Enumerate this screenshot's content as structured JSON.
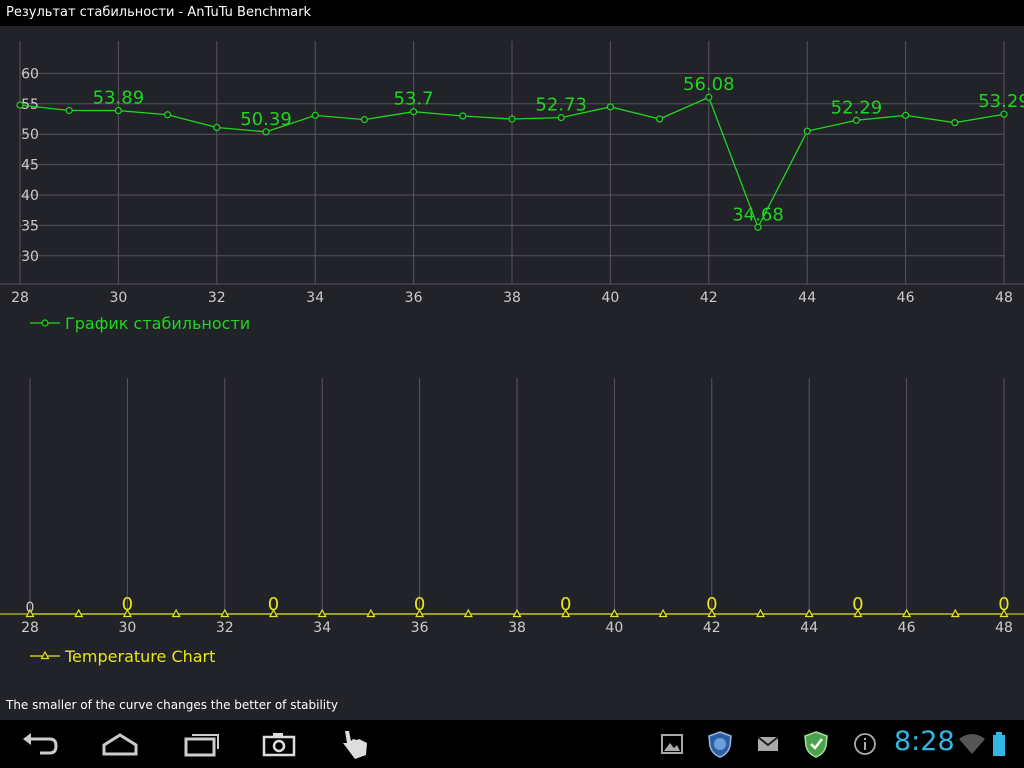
{
  "window": {
    "title": "Результат стабильности - AnTuTu Benchmark"
  },
  "footnote": "The smaller of the curve changes the better of stability",
  "status": {
    "time": "8:28"
  },
  "colors": {
    "stability": "#1fd51f",
    "temperature": "#e6e61e",
    "grid": "#55565c",
    "background": "#222328"
  },
  "icons": {
    "nav": [
      "back-icon",
      "home-icon",
      "recent-apps-icon",
      "screenshot-camera-icon",
      "hand-pointer-icon"
    ],
    "status": [
      "gallery-icon",
      "antutu-shield-icon",
      "gmail-icon",
      "green-shield-icon",
      "info-icon",
      "wifi-icon",
      "battery-icon"
    ]
  },
  "chart_data": [
    {
      "type": "line",
      "x": [
        28,
        29,
        30,
        31,
        32,
        33,
        34,
        35,
        36,
        37,
        38,
        39,
        40,
        41,
        42,
        43,
        44,
        45,
        46,
        47,
        48
      ],
      "series": [
        {
          "name": "График стабильности",
          "values": [
            54.8,
            53.9,
            53.89,
            53.2,
            51.1,
            50.39,
            53.1,
            52.4,
            53.7,
            53.0,
            52.5,
            52.73,
            54.5,
            52.5,
            56.08,
            34.68,
            50.5,
            52.29,
            53.1,
            51.9,
            53.29
          ]
        }
      ],
      "labeled_points": [
        {
          "x": 30,
          "label": "53.89"
        },
        {
          "x": 33,
          "label": "50.39"
        },
        {
          "x": 36,
          "label": "53.7"
        },
        {
          "x": 39,
          "label": "52.73"
        },
        {
          "x": 42,
          "label": "56.08"
        },
        {
          "x": 43,
          "label": "34.68"
        },
        {
          "x": 45,
          "label": "52.29"
        },
        {
          "x": 48,
          "label": "53.29"
        }
      ],
      "x_ticks": [
        "28",
        "30",
        "32",
        "34",
        "36",
        "38",
        "40",
        "42",
        "44",
        "46",
        "48"
      ],
      "y_ticks": [
        "30",
        "35",
        "40",
        "45",
        "50",
        "55",
        "60"
      ],
      "xlim": [
        28,
        48
      ],
      "ylim": [
        26,
        64
      ],
      "grid": true,
      "legend": "bottom-left"
    },
    {
      "type": "line",
      "x": [
        28,
        29,
        30,
        31,
        32,
        33,
        34,
        35,
        36,
        37,
        38,
        39,
        40,
        41,
        42,
        43,
        44,
        45,
        46,
        47,
        48
      ],
      "series": [
        {
          "name": "Temperature Chart",
          "values": [
            0,
            0,
            0,
            0,
            0,
            0,
            0,
            0,
            0,
            0,
            0,
            0,
            0,
            0,
            0,
            0,
            0,
            0,
            0,
            0,
            0
          ]
        }
      ],
      "labeled_points": [
        {
          "x": 30,
          "label": "0"
        },
        {
          "x": 33,
          "label": "0"
        },
        {
          "x": 36,
          "label": "0"
        },
        {
          "x": 39,
          "label": "0"
        },
        {
          "x": 42,
          "label": "0"
        },
        {
          "x": 45,
          "label": "0"
        },
        {
          "x": 48,
          "label": "0"
        }
      ],
      "x_ticks": [
        "28",
        "30",
        "32",
        "34",
        "36",
        "38",
        "40",
        "42",
        "44",
        "46",
        "48"
      ],
      "y_ticks": [
        "0"
      ],
      "xlim": [
        28,
        48
      ],
      "ylim": [
        0,
        1
      ],
      "grid": true,
      "legend": "bottom-left"
    }
  ]
}
